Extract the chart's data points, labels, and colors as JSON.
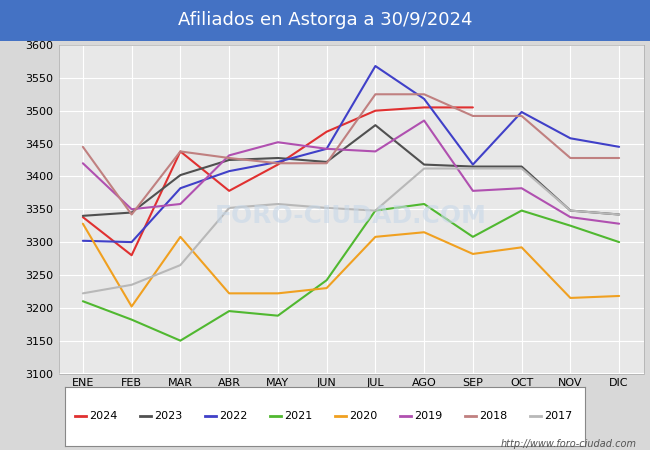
{
  "title": "Afiliados en Astorga a 30/9/2024",
  "title_bg_color": "#4472c4",
  "title_text_color": "white",
  "ylim": [
    3100,
    3600
  ],
  "yticks": [
    3100,
    3150,
    3200,
    3250,
    3300,
    3350,
    3400,
    3450,
    3500,
    3550,
    3600
  ],
  "months": [
    "ENE",
    "FEB",
    "MAR",
    "ABR",
    "MAY",
    "JUN",
    "JUL",
    "AGO",
    "SEP",
    "OCT",
    "NOV",
    "DIC"
  ],
  "series": {
    "2024": {
      "color": "#e03030",
      "data": [
        3338,
        3280,
        3438,
        3378,
        3418,
        3468,
        3500,
        3505,
        3505,
        null,
        null,
        null
      ]
    },
    "2023": {
      "color": "#505050",
      "data": [
        3340,
        3345,
        3402,
        3425,
        3428,
        3422,
        3478,
        3418,
        3415,
        3415,
        3348,
        3342
      ]
    },
    "2022": {
      "color": "#4040c8",
      "data": [
        3302,
        3300,
        3382,
        3408,
        3422,
        3442,
        3568,
        3518,
        3418,
        3498,
        3458,
        3445
      ]
    },
    "2021": {
      "color": "#50b830",
      "data": [
        3210,
        3182,
        3150,
        3195,
        3188,
        3242,
        3348,
        3358,
        3308,
        3348,
        3325,
        3300
      ]
    },
    "2020": {
      "color": "#f0a020",
      "data": [
        3328,
        3202,
        3308,
        3222,
        3222,
        3230,
        3308,
        3315,
        3282,
        3292,
        3215,
        3218
      ]
    },
    "2019": {
      "color": "#b050b0",
      "data": [
        3420,
        3350,
        3358,
        3432,
        3452,
        3442,
        3438,
        3485,
        3378,
        3382,
        3338,
        3328
      ]
    },
    "2018": {
      "color": "#c08080",
      "data": [
        3445,
        3342,
        3438,
        3428,
        3420,
        3420,
        3525,
        3525,
        3492,
        3492,
        3428,
        3428
      ]
    },
    "2017": {
      "color": "#b8b8b8",
      "data": [
        3222,
        3235,
        3265,
        3352,
        3358,
        3352,
        3348,
        3412,
        3412,
        3412,
        3348,
        3342
      ]
    }
  },
  "legend_order": [
    "2024",
    "2023",
    "2022",
    "2021",
    "2020",
    "2019",
    "2018",
    "2017"
  ],
  "figure_bg_color": "#d8d8d8",
  "plot_bg_color": "#e8e8e8",
  "grid_color": "white",
  "footer_text": "http://www.foro-ciudad.com",
  "watermark_text": "FORO-CIUDAD.COM",
  "watermark_color": "#c8d8e8"
}
